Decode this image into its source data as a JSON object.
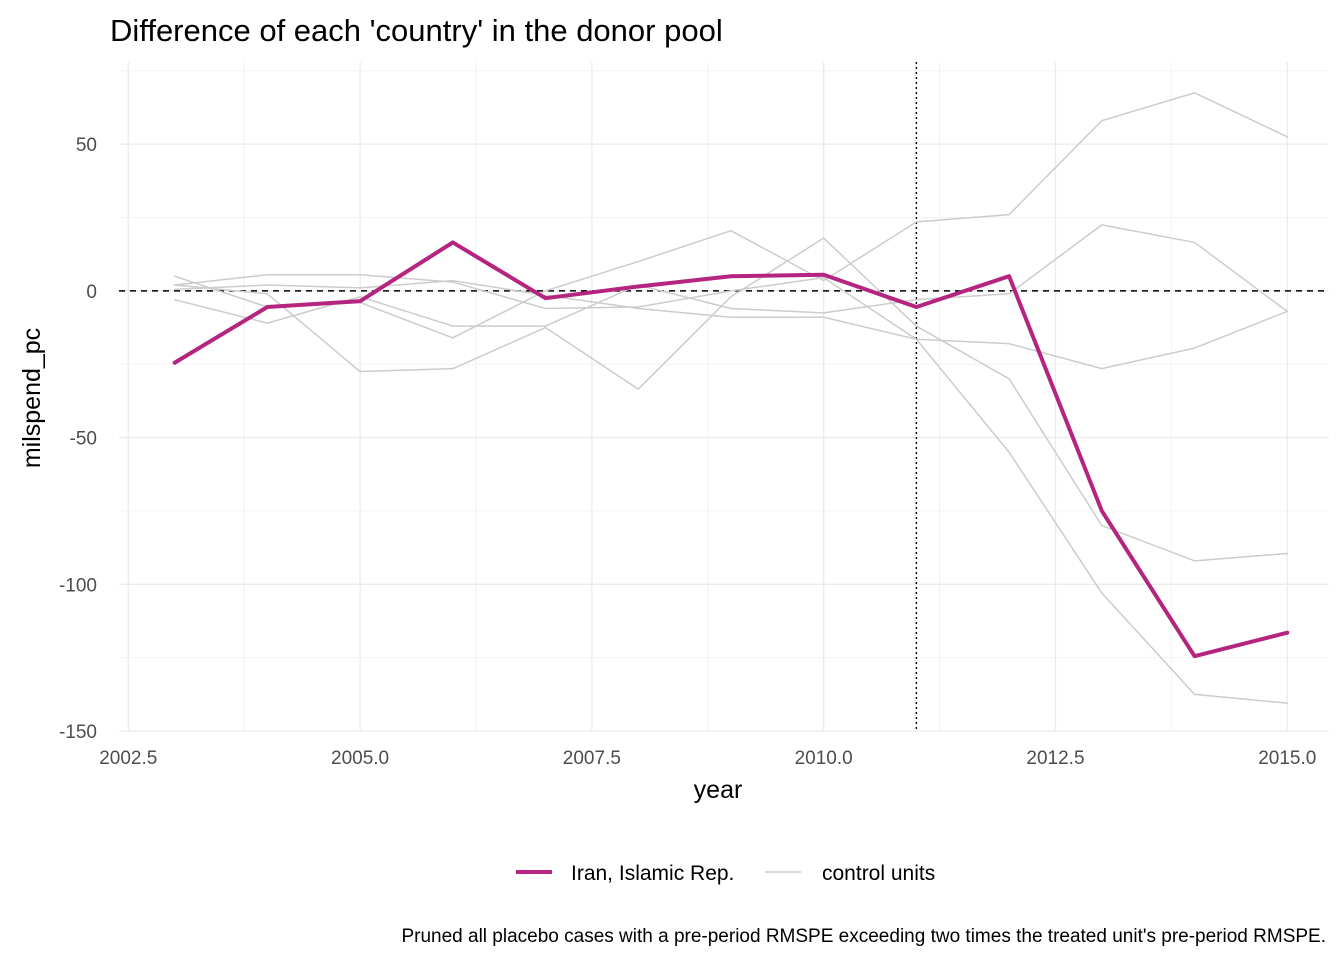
{
  "chart_data": {
    "type": "line",
    "title": "Difference of each 'country' in the donor pool",
    "xlabel": "year",
    "ylabel": "milspend_pc",
    "caption": "Pruned all placebo cases with a pre-period RMSPE exceeding two times the treated unit's pre-period RMSPE.",
    "xlim": [
      2002.4,
      2015.45
    ],
    "ylim": [
      -150,
      78
    ],
    "x_ticks": [
      2002.5,
      2005.0,
      2007.5,
      2010.0,
      2012.5,
      2015.0
    ],
    "x_tick_labels": [
      "2002.5",
      "2005.0",
      "2007.5",
      "2010.0",
      "2012.5",
      "2015.0"
    ],
    "y_ticks": [
      -150,
      -100,
      -50,
      0,
      50
    ],
    "y_tick_labels": [
      "-150",
      "-100",
      "-50",
      "0",
      "50"
    ],
    "treatment_year": 2011,
    "reference_y": 0,
    "grid": true,
    "legend_position": "bottom",
    "x": [
      2003,
      2004,
      2005,
      2006,
      2007,
      2008,
      2009,
      2010,
      2011,
      2012,
      2013,
      2014,
      2015
    ],
    "series": [
      {
        "name": "Iran, Islamic Rep.",
        "role": "treated",
        "color": "#b5247e",
        "values": [
          -24.5,
          -5.5,
          -3.5,
          16.5,
          -2.5,
          1.5,
          5.0,
          5.5,
          -5.5,
          5.0,
          -75.0,
          -124.5,
          -116.5
        ]
      },
      {
        "name": "control units",
        "role": "control",
        "color": "#cccccc",
        "values": [
          5.0,
          -5.5,
          -4.0,
          -16.0,
          0.0,
          10.0,
          20.5,
          3.5,
          23.5,
          26.0,
          58.0,
          67.5,
          52.5
        ]
      },
      {
        "name": "control units",
        "role": "control",
        "color": "#cccccc",
        "values": [
          -3.0,
          -11.0,
          -2.0,
          -12.0,
          -12.0,
          2.0,
          -6.0,
          -7.5,
          -3.0,
          -1.0,
          22.5,
          16.5,
          -7.0
        ]
      },
      {
        "name": "control units",
        "role": "control",
        "color": "#cccccc",
        "values": [
          2.0,
          5.5,
          5.5,
          3.0,
          -6.0,
          -5.5,
          0.0,
          4.5,
          -16.5,
          -18.0,
          -26.5,
          -19.5,
          -7.0
        ]
      },
      {
        "name": "control units",
        "role": "control",
        "color": "#cccccc",
        "values": [
          2.0,
          -1.0,
          -27.5,
          -26.5,
          -12.5,
          -33.5,
          -2.0,
          18.0,
          -12.0,
          -30.0,
          -80.0,
          -92.0,
          -89.5
        ]
      },
      {
        "name": "control units",
        "role": "control",
        "color": "#cccccc",
        "values": [
          0.5,
          2.0,
          1.0,
          3.5,
          -1.5,
          -6.0,
          -9.0,
          -9.0,
          -16.5,
          -55.0,
          -103.0,
          -137.5,
          -140.5
        ]
      }
    ],
    "legend": [
      {
        "label": "Iran, Islamic Rep.",
        "color": "#b5247e",
        "width": 4
      },
      {
        "label": "control units",
        "color": "#cccccc",
        "width": 1.5
      }
    ]
  }
}
